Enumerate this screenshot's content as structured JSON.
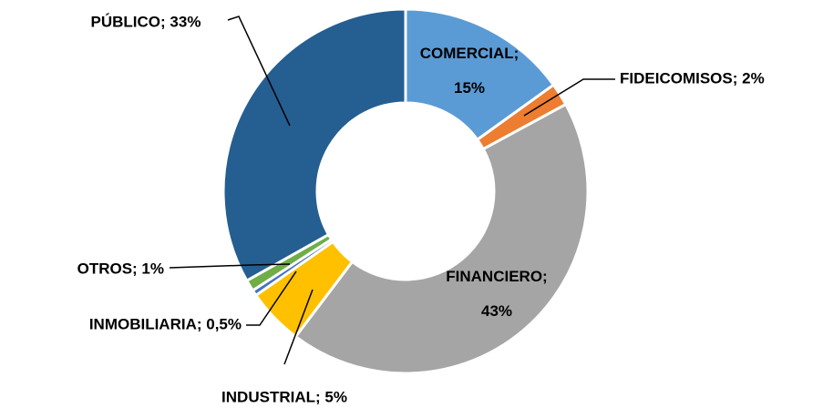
{
  "chart_data": {
    "type": "donut",
    "value_labels": [
      "COMERCIAL; 15%",
      "FIDEICOMISOS; 2%",
      "FINANCIERO; 43%",
      "INDUSTRIAL; 5%",
      "INMOBILIARIA; 0,5%",
      "OTROS; 1%",
      "PÚBLICO; 33%"
    ],
    "values": [
      15,
      2,
      43,
      5,
      0.5,
      1,
      33
    ],
    "colors": [
      "#5b9bd5",
      "#ed7d31",
      "#a5a5a5",
      "#ffc000",
      "#4472c4",
      "#70ad47",
      "#255e91"
    ]
  }
}
